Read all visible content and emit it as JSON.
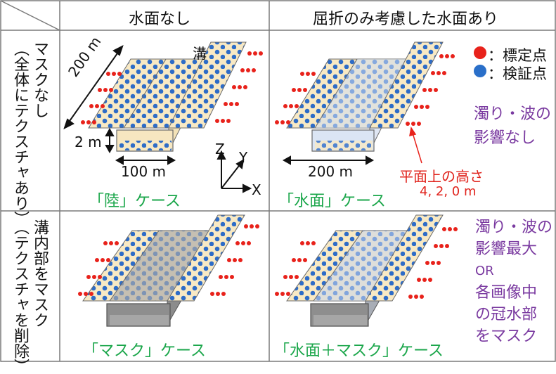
{
  "headers": {
    "col1": "水面なし",
    "col2": "屈折のみ考慮した水面あり"
  },
  "row_labels": {
    "row1_line1": "マスクなし",
    "row1_line2": "（全体にテクスチャあり）",
    "row2_line1": "溝内部をマスク",
    "row2_line2": "（テクスチャを削除）"
  },
  "legend": {
    "calibration": "：標定点",
    "validation": "：検証点",
    "calibration_color": "#e8221b",
    "validation_color": "#2a6fc9"
  },
  "land_case": {
    "label": "「陸」ケース",
    "ditch": "溝",
    "length": "200 m",
    "depth": "2 m",
    "width": "100 m"
  },
  "axes": {
    "x": "X",
    "y": "Y",
    "z": "Z"
  },
  "water_case": {
    "label": "「水面」ケース",
    "width": "200 m",
    "height_title": "平面上の高さ",
    "height_values": "4, 2, 0 m"
  },
  "effect_none": {
    "line1": "濁り・波の",
    "line2": "影響なし"
  },
  "effect_max": {
    "line1": "濁り・波の",
    "line2": "影響最大",
    "or": "OR",
    "line3": "各画像中",
    "line4": "の冠水部",
    "line5": "をマスク"
  },
  "mask_case": {
    "label": "「マスク」ケース"
  },
  "water_mask_case": {
    "label": "「水面＋マスク」ケース"
  }
}
